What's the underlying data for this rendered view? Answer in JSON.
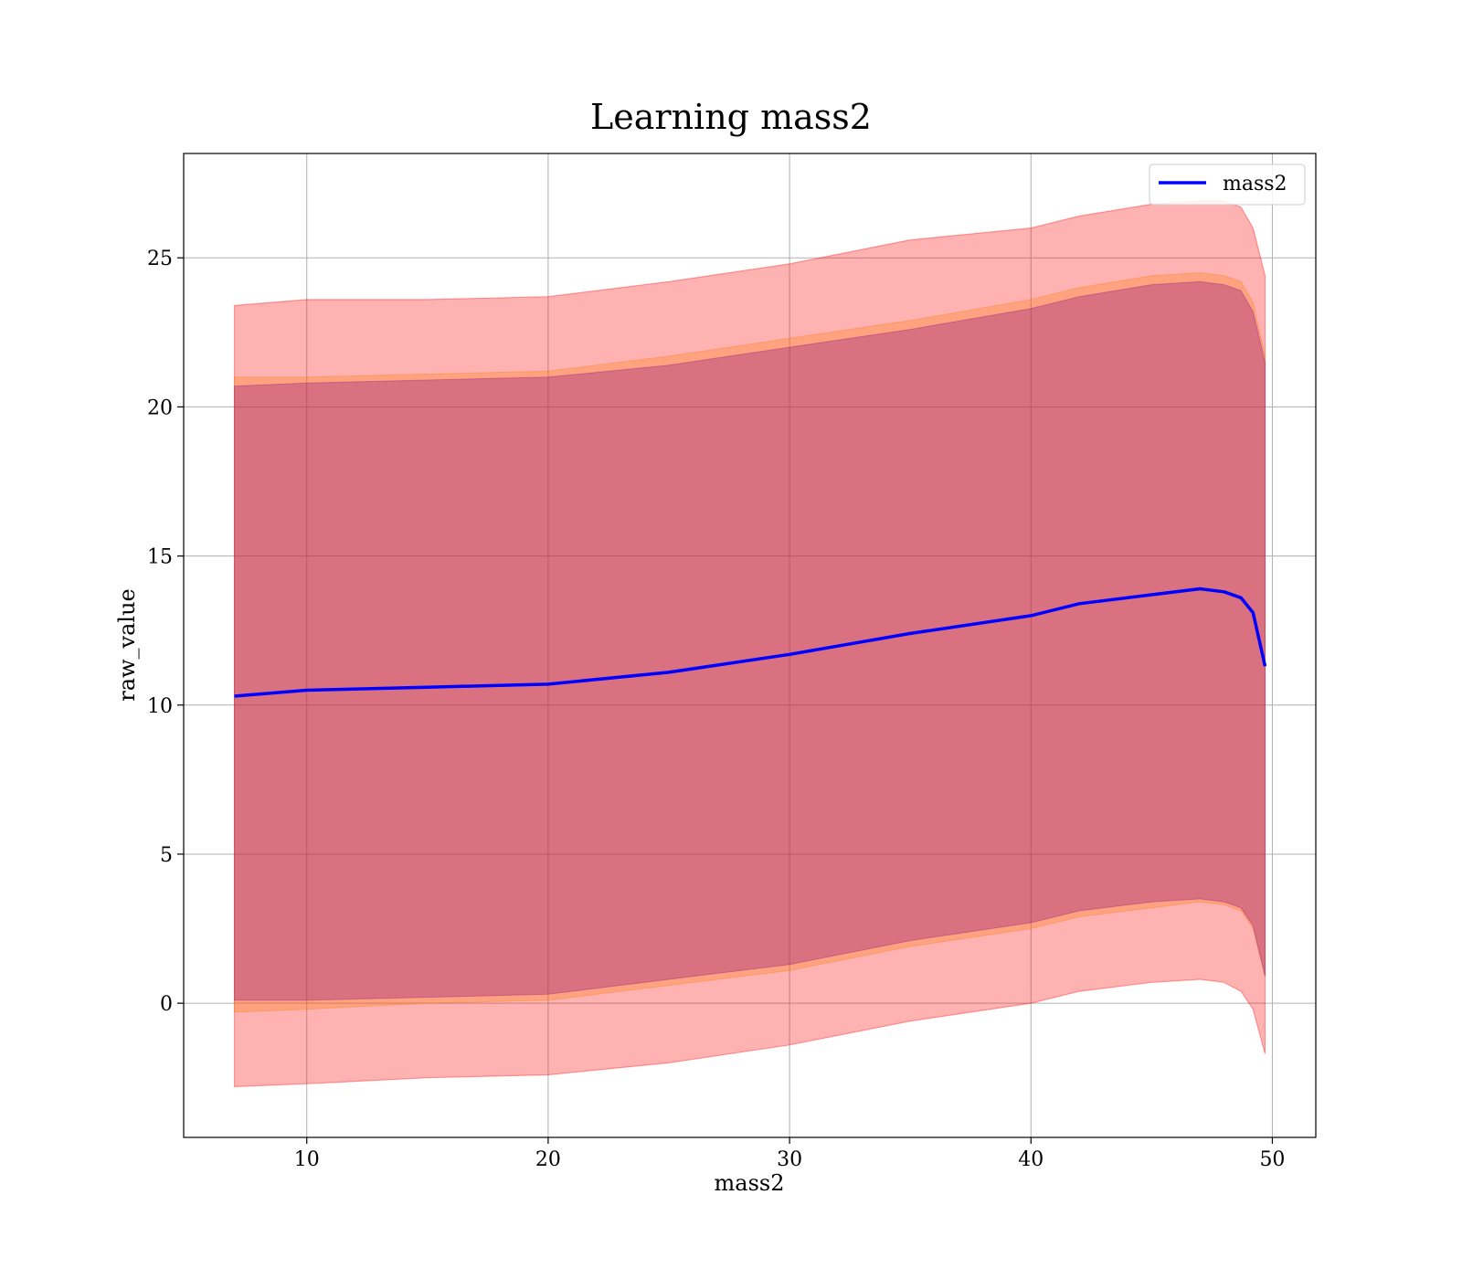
{
  "chart_data": {
    "type": "area",
    "title": "Learning mass2",
    "xlabel": "mass2",
    "ylabel": "raw_value",
    "xlim": [
      4.9,
      51.8
    ],
    "ylim": [
      -4.5,
      28.5
    ],
    "xticks": [
      10,
      20,
      30,
      40,
      50
    ],
    "yticks": [
      0,
      5,
      10,
      15,
      20,
      25
    ],
    "grid": true,
    "legend": {
      "position": "top-right",
      "entries": [
        "mass2"
      ]
    },
    "colors": {
      "line": "#0000ff",
      "outer_band": "#ff0000",
      "middle_band": "#ff7f0e",
      "inner_band": "#800080"
    },
    "x": [
      7.0,
      10,
      15,
      20,
      25,
      30,
      35,
      40,
      42,
      45,
      47,
      48,
      48.7,
      49.2,
      49.7
    ],
    "series": [
      {
        "name": "mass2",
        "role": "line",
        "values": [
          10.3,
          10.5,
          10.6,
          10.7,
          11.1,
          11.7,
          12.4,
          13.0,
          13.4,
          13.7,
          13.9,
          13.8,
          13.6,
          13.1,
          11.3
        ]
      },
      {
        "role": "outer_band",
        "lower": [
          -2.8,
          -2.7,
          -2.5,
          -2.4,
          -2.0,
          -1.4,
          -0.6,
          0.0,
          0.4,
          0.7,
          0.8,
          0.7,
          0.4,
          -0.2,
          -1.7
        ],
        "upper": [
          23.4,
          23.6,
          23.6,
          23.7,
          24.2,
          24.8,
          25.6,
          26.0,
          26.4,
          26.8,
          26.9,
          26.9,
          26.7,
          26.0,
          24.4
        ]
      },
      {
        "role": "middle_band",
        "lower": [
          -0.3,
          -0.2,
          0.0,
          0.1,
          0.6,
          1.1,
          1.9,
          2.5,
          2.9,
          3.2,
          3.4,
          3.3,
          3.1,
          2.5,
          0.9
        ]
      },
      {
        "role": "middle_band_upper",
        "upper": [
          21.0,
          21.0,
          21.1,
          21.2,
          21.7,
          22.3,
          22.9,
          23.6,
          24.0,
          24.4,
          24.5,
          24.4,
          24.2,
          23.5,
          21.7
        ]
      },
      {
        "role": "inner_band",
        "lower": [
          0.1,
          0.1,
          0.2,
          0.3,
          0.8,
          1.3,
          2.1,
          2.7,
          3.1,
          3.4,
          3.5,
          3.4,
          3.2,
          2.6,
          0.9
        ],
        "upper": [
          20.7,
          20.8,
          20.9,
          21.0,
          21.4,
          22.0,
          22.6,
          23.3,
          23.7,
          24.1,
          24.2,
          24.1,
          23.9,
          23.2,
          21.5
        ]
      }
    ]
  }
}
